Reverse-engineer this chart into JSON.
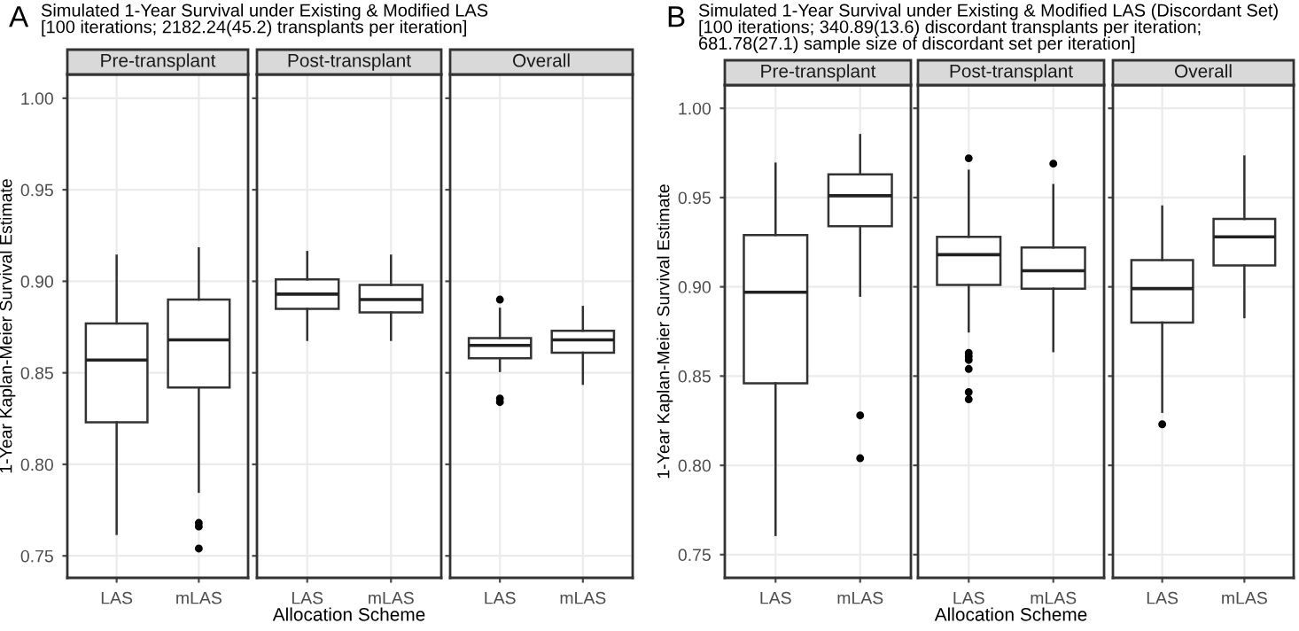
{
  "chart_data": [
    {
      "type": "box",
      "title": "Pre-transplant",
      "ylabel": "1-Year Kaplan-Meier Survival Estimate",
      "annotations": [
        "A",
        "Simulated 1-Year Survival under Existing & Modified LAS\n[100 iterations; 2182.24(45.2) transplants per iteration]"
      ],
      "categories": [
        "LAS",
        "mLAS"
      ],
      "ylim": [
        0.738,
        1.013
      ],
      "yticks": [
        {
          "value": 0.75,
          "label": "0.75"
        },
        {
          "value": 0.8,
          "label": "0.80"
        },
        {
          "value": 0.85,
          "label": "0.85"
        },
        {
          "value": 0.9,
          "label": "0.90"
        },
        {
          "value": 0.95,
          "label": "0.95"
        },
        {
          "value": 1.0,
          "label": "1.00"
        }
      ],
      "grid": true,
      "boxes": [
        {
          "low": 0.762,
          "q1": 0.823,
          "median": 0.857,
          "q3": 0.877,
          "high": 0.914
        },
        {
          "low": 0.785,
          "q1": 0.842,
          "median": 0.868,
          "q3": 0.89,
          "high": 0.918,
          "outliers": [
            0.768,
            0.766,
            0.754
          ]
        }
      ]
    },
    {
      "type": "box",
      "title": "Post-transplant",
      "xlabel": "Allocation Scheme",
      "categories": [
        "LAS",
        "mLAS"
      ],
      "ylim": [
        0.738,
        1.013
      ],
      "yticks": [
        0.75,
        0.8,
        0.85,
        0.9,
        0.95,
        1.0
      ],
      "grid": true,
      "tick_labels": "x",
      "boxes": [
        {
          "low": 0.868,
          "q1": 0.885,
          "median": 0.893,
          "q3": 0.901,
          "high": 0.916
        },
        {
          "low": 0.868,
          "q1": 0.883,
          "median": 0.89,
          "q3": 0.898,
          "high": 0.914
        }
      ]
    },
    {
      "type": "box",
      "title": "Overall",
      "categories": [
        "LAS",
        "mLAS"
      ],
      "ylim": [
        0.738,
        1.013
      ],
      "yticks": [
        0.75,
        0.8,
        0.85,
        0.9,
        0.95,
        1.0
      ],
      "grid": true,
      "tick_labels": "x",
      "boxes": [
        {
          "low": 0.851,
          "q1": 0.858,
          "median": 0.865,
          "q3": 0.869,
          "high": 0.885,
          "outliers": [
            0.89,
            0.836,
            0.834
          ]
        },
        {
          "low": 0.844,
          "q1": 0.861,
          "median": 0.868,
          "q3": 0.873,
          "high": 0.886
        }
      ]
    },
    {
      "type": "box",
      "title": "Pre-transplant",
      "ylabel": "1-Year Kaplan-Meier Survival Estimate",
      "annotations": [
        "B",
        "Simulated 1-Year Survival under Existing & Modified LAS (Discordant Set)\n[100 iterations; 340.89(13.6) discordant transplants per iteration;\n681.78(27.1) sample size of discordant set per iteration]"
      ],
      "categories": [
        "LAS",
        "mLAS"
      ],
      "ylim": [
        0.737,
        1.013
      ],
      "yticks": [
        {
          "value": 0.75,
          "label": "0.75"
        },
        {
          "value": 0.8,
          "label": "0.80"
        },
        {
          "value": 0.85,
          "label": "0.85"
        },
        {
          "value": 0.9,
          "label": "0.90"
        },
        {
          "value": 0.95,
          "label": "0.95"
        },
        {
          "value": 1.0,
          "label": "1.00"
        }
      ],
      "grid": true,
      "boxes": [
        {
          "low": 0.761,
          "q1": 0.846,
          "median": 0.897,
          "q3": 0.929,
          "high": 0.969
        },
        {
          "low": 0.895,
          "q1": 0.934,
          "median": 0.951,
          "q3": 0.963,
          "high": 0.985,
          "outliers": [
            0.828,
            0.804
          ]
        }
      ]
    },
    {
      "type": "box",
      "title": "Post-transplant",
      "xlabel": "Allocation Scheme",
      "categories": [
        "LAS",
        "mLAS"
      ],
      "ylim": [
        0.737,
        1.013
      ],
      "yticks": [
        0.75,
        0.8,
        0.85,
        0.9,
        0.95,
        1.0
      ],
      "grid": true,
      "tick_labels": "x",
      "boxes": [
        {
          "low": 0.875,
          "q1": 0.901,
          "median": 0.918,
          "q3": 0.928,
          "high": 0.965,
          "outliers": [
            0.972,
            0.863,
            0.861,
            0.859,
            0.854,
            0.841,
            0.837
          ]
        },
        {
          "low": 0.864,
          "q1": 0.899,
          "median": 0.909,
          "q3": 0.922,
          "high": 0.957,
          "outliers": [
            0.969
          ]
        }
      ]
    },
    {
      "type": "box",
      "title": "Overall",
      "categories": [
        "LAS",
        "mLAS"
      ],
      "ylim": [
        0.737,
        1.013
      ],
      "yticks": [
        0.75,
        0.8,
        0.85,
        0.9,
        0.95,
        1.0
      ],
      "grid": true,
      "tick_labels": "x",
      "boxes": [
        {
          "low": 0.83,
          "q1": 0.88,
          "median": 0.899,
          "q3": 0.915,
          "high": 0.945,
          "outliers": [
            0.823
          ]
        },
        {
          "low": 0.883,
          "q1": 0.912,
          "median": 0.928,
          "q3": 0.938,
          "high": 0.973
        }
      ]
    }
  ]
}
